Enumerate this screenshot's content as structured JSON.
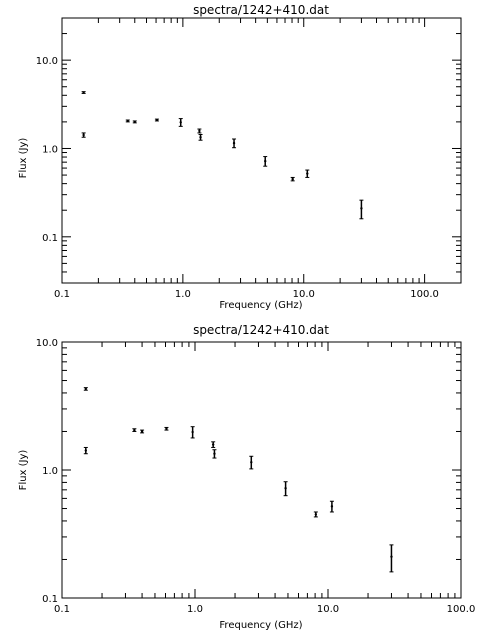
{
  "chart_data": [
    {
      "type": "scatter",
      "title": "spectra/1242+410.dat",
      "xlabel": "Frequency (GHz)",
      "ylabel": "Flux (Jy)",
      "x_scale": "log",
      "y_scale": "log",
      "xlim": [
        0.1,
        200
      ],
      "ylim": [
        0.03,
        30
      ],
      "xticks": [
        0.1,
        1,
        10,
        100
      ],
      "xtick_labels": [
        "0.1",
        "1.0",
        "10.0",
        "100.0"
      ],
      "yticks": [
        0.1,
        1,
        10
      ],
      "ytick_labels": [
        "0.1",
        "1.0",
        "10.0"
      ],
      "grid": false,
      "points": [
        {
          "x": 0.151,
          "y": 4.3,
          "err": 0.1
        },
        {
          "x": 0.151,
          "y": 1.42,
          "err": 0.08
        },
        {
          "x": 0.35,
          "y": 2.05,
          "err": 0.05
        },
        {
          "x": 0.4,
          "y": 2.0,
          "err": 0.05
        },
        {
          "x": 0.61,
          "y": 2.1,
          "err": 0.05
        },
        {
          "x": 0.96,
          "y": 1.98,
          "err": 0.2
        },
        {
          "x": 1.37,
          "y": 1.58,
          "err": 0.08
        },
        {
          "x": 1.4,
          "y": 1.34,
          "err": 0.1
        },
        {
          "x": 2.65,
          "y": 1.15,
          "err": 0.13
        },
        {
          "x": 4.8,
          "y": 0.72,
          "err": 0.09
        },
        {
          "x": 8.1,
          "y": 0.45,
          "err": 0.02
        },
        {
          "x": 10.7,
          "y": 0.52,
          "err": 0.05
        },
        {
          "x": 30.0,
          "y": 0.21,
          "err": 0.05
        }
      ]
    },
    {
      "type": "scatter",
      "title": "spectra/1242+410.dat",
      "xlabel": "Frequency (GHz)",
      "ylabel": "Flux (Jy)",
      "x_scale": "log",
      "y_scale": "log",
      "xlim": [
        0.1,
        100
      ],
      "ylim": [
        0.1,
        10
      ],
      "xticks": [
        0.1,
        1,
        10,
        100
      ],
      "xtick_labels": [
        "0.1",
        "1.0",
        "10.0",
        "100.0"
      ],
      "yticks": [
        0.1,
        1,
        10
      ],
      "ytick_labels": [
        "0.1",
        "1.0",
        "10.0"
      ],
      "grid": false,
      "points": [
        {
          "x": 0.151,
          "y": 4.3,
          "err": 0.1
        },
        {
          "x": 0.151,
          "y": 1.42,
          "err": 0.08
        },
        {
          "x": 0.35,
          "y": 2.05,
          "err": 0.05
        },
        {
          "x": 0.4,
          "y": 2.0,
          "err": 0.05
        },
        {
          "x": 0.61,
          "y": 2.1,
          "err": 0.05
        },
        {
          "x": 0.96,
          "y": 1.98,
          "err": 0.2
        },
        {
          "x": 1.37,
          "y": 1.58,
          "err": 0.08
        },
        {
          "x": 1.4,
          "y": 1.34,
          "err": 0.1
        },
        {
          "x": 2.65,
          "y": 1.15,
          "err": 0.13
        },
        {
          "x": 4.8,
          "y": 0.72,
          "err": 0.09
        },
        {
          "x": 8.1,
          "y": 0.45,
          "err": 0.02
        },
        {
          "x": 10.7,
          "y": 0.52,
          "err": 0.05
        },
        {
          "x": 30.0,
          "y": 0.21,
          "err": 0.05
        }
      ]
    }
  ]
}
